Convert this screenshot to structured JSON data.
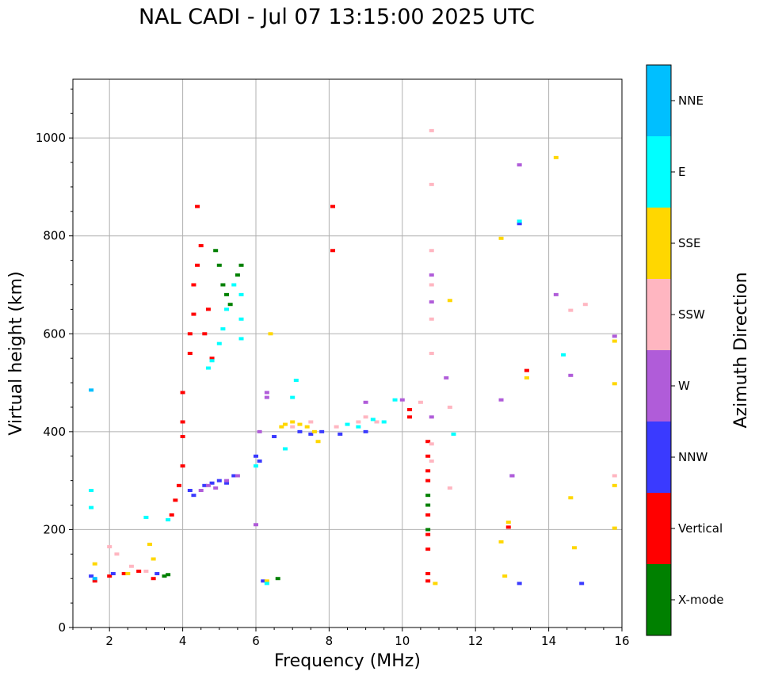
{
  "chart_data": {
    "type": "scatter",
    "title": "NAL CADI - Jul 07 13:15:00 2025 UTC",
    "xlabel": "Frequency (MHz)",
    "ylabel": "Virtual height (km)",
    "xlim": [
      1,
      16
    ],
    "ylim": [
      0,
      1120
    ],
    "xticks": [
      "2",
      "4",
      "6",
      "8",
      "10",
      "12",
      "14",
      "16"
    ],
    "yticks": [
      "0",
      "200",
      "400",
      "600",
      "800",
      "1000"
    ],
    "grid": true,
    "colorbar": {
      "label": "Azimuth Direction",
      "categories": [
        "X-mode",
        "Vertical",
        "NNW",
        "W",
        "SSW",
        "SSE",
        "E",
        "NNE"
      ],
      "colors": [
        "#008000",
        "#ff0000",
        "#3a3aff",
        "#b05cd9",
        "#ffb6c1",
        "#ffd700",
        "#00ffff",
        "#00bfff"
      ]
    },
    "series": [
      {
        "name": "X-mode",
        "points": [
          [
            3.5,
            105
          ],
          [
            3.6,
            108
          ],
          [
            4.9,
            770
          ],
          [
            5.0,
            740
          ],
          [
            5.1,
            700
          ],
          [
            5.2,
            680
          ],
          [
            5.3,
            660
          ],
          [
            5.5,
            720
          ],
          [
            5.6,
            740
          ],
          [
            10.7,
            270
          ],
          [
            10.7,
            250
          ],
          [
            10.7,
            200
          ],
          [
            6.6,
            100
          ]
        ]
      },
      {
        "name": "Vertical",
        "points": [
          [
            1.6,
            95
          ],
          [
            2.0,
            105
          ],
          [
            2.4,
            110
          ],
          [
            2.8,
            115
          ],
          [
            3.2,
            100
          ],
          [
            3.7,
            230
          ],
          [
            3.8,
            260
          ],
          [
            3.9,
            290
          ],
          [
            4.0,
            330
          ],
          [
            4.0,
            390
          ],
          [
            4.0,
            420
          ],
          [
            4.0,
            480
          ],
          [
            4.2,
            560
          ],
          [
            4.2,
            600
          ],
          [
            4.3,
            640
          ],
          [
            4.3,
            700
          ],
          [
            4.4,
            740
          ],
          [
            4.5,
            780
          ],
          [
            4.6,
            600
          ],
          [
            4.7,
            650
          ],
          [
            4.8,
            550
          ],
          [
            4.4,
            860
          ],
          [
            8.1,
            860
          ],
          [
            8.1,
            770
          ],
          [
            10.7,
            380
          ],
          [
            10.7,
            350
          ],
          [
            10.7,
            320
          ],
          [
            10.7,
            300
          ],
          [
            10.7,
            230
          ],
          [
            10.7,
            190
          ],
          [
            10.7,
            160
          ],
          [
            10.7,
            110
          ],
          [
            10.7,
            95
          ],
          [
            10.2,
            430
          ],
          [
            10.2,
            445
          ],
          [
            13.4,
            525
          ],
          [
            12.9,
            205
          ]
        ]
      },
      {
        "name": "NNW",
        "points": [
          [
            1.5,
            105
          ],
          [
            2.1,
            110
          ],
          [
            3.3,
            110
          ],
          [
            4.2,
            280
          ],
          [
            4.3,
            270
          ],
          [
            4.6,
            290
          ],
          [
            4.8,
            295
          ],
          [
            5.0,
            300
          ],
          [
            5.2,
            295
          ],
          [
            5.4,
            310
          ],
          [
            6.0,
            350
          ],
          [
            6.1,
            340
          ],
          [
            6.5,
            390
          ],
          [
            7.2,
            400
          ],
          [
            7.5,
            395
          ],
          [
            7.8,
            400
          ],
          [
            8.3,
            395
          ],
          [
            9.0,
            400
          ],
          [
            6.2,
            95
          ],
          [
            13.2,
            825
          ],
          [
            13.0,
            310
          ],
          [
            13.2,
            90
          ],
          [
            14.9,
            90
          ]
        ]
      },
      {
        "name": "W",
        "points": [
          [
            4.5,
            280
          ],
          [
            4.7,
            290
          ],
          [
            4.9,
            285
          ],
          [
            5.2,
            300
          ],
          [
            5.5,
            310
          ],
          [
            6.1,
            400
          ],
          [
            6.3,
            480
          ],
          [
            6.3,
            470
          ],
          [
            6.0,
            210
          ],
          [
            9.0,
            460
          ],
          [
            10.0,
            465
          ],
          [
            10.8,
            430
          ],
          [
            10.8,
            665
          ],
          [
            10.8,
            720
          ],
          [
            12.7,
            465
          ],
          [
            13.0,
            310
          ],
          [
            13.2,
            945
          ],
          [
            14.2,
            680
          ],
          [
            14.6,
            515
          ],
          [
            15.8,
            595
          ],
          [
            11.2,
            510
          ]
        ]
      },
      {
        "name": "SSW",
        "points": [
          [
            2.0,
            165
          ],
          [
            2.2,
            150
          ],
          [
            2.6,
            125
          ],
          [
            3.0,
            115
          ],
          [
            7.0,
            410
          ],
          [
            7.5,
            420
          ],
          [
            8.2,
            410
          ],
          [
            8.8,
            420
          ],
          [
            9.0,
            430
          ],
          [
            9.3,
            420
          ],
          [
            10.8,
            1015
          ],
          [
            10.8,
            905
          ],
          [
            10.8,
            770
          ],
          [
            10.8,
            700
          ],
          [
            10.8,
            630
          ],
          [
            10.8,
            560
          ],
          [
            10.8,
            375
          ],
          [
            10.8,
            340
          ],
          [
            10.5,
            460
          ],
          [
            11.3,
            450
          ],
          [
            11.3,
            285
          ],
          [
            14.6,
            648
          ],
          [
            15.0,
            660
          ],
          [
            15.8,
            310
          ]
        ]
      },
      {
        "name": "SSE",
        "points": [
          [
            1.6,
            130
          ],
          [
            2.5,
            110
          ],
          [
            3.1,
            170
          ],
          [
            3.2,
            140
          ],
          [
            6.3,
            95
          ],
          [
            6.4,
            600
          ],
          [
            6.7,
            410
          ],
          [
            6.8,
            415
          ],
          [
            7.0,
            420
          ],
          [
            7.2,
            415
          ],
          [
            7.4,
            410
          ],
          [
            7.6,
            400
          ],
          [
            7.7,
            380
          ],
          [
            10.9,
            90
          ],
          [
            11.3,
            668
          ],
          [
            12.7,
            795
          ],
          [
            12.8,
            105
          ],
          [
            12.7,
            175
          ],
          [
            12.9,
            215
          ],
          [
            13.4,
            510
          ],
          [
            14.2,
            960
          ],
          [
            14.6,
            265
          ],
          [
            14.7,
            163
          ],
          [
            15.8,
            585
          ],
          [
            15.8,
            498
          ],
          [
            15.8,
            290
          ],
          [
            15.8,
            203
          ]
        ]
      },
      {
        "name": "E",
        "points": [
          [
            1.5,
            280
          ],
          [
            1.5,
            245
          ],
          [
            3.0,
            225
          ],
          [
            3.6,
            220
          ],
          [
            4.7,
            530
          ],
          [
            4.8,
            545
          ],
          [
            5.0,
            580
          ],
          [
            5.1,
            610
          ],
          [
            5.2,
            650
          ],
          [
            5.4,
            700
          ],
          [
            5.6,
            680
          ],
          [
            5.6,
            630
          ],
          [
            5.6,
            590
          ],
          [
            6.0,
            330
          ],
          [
            6.3,
            90
          ],
          [
            6.8,
            365
          ],
          [
            7.0,
            470
          ],
          [
            7.1,
            505
          ],
          [
            8.5,
            415
          ],
          [
            8.8,
            410
          ],
          [
            9.2,
            425
          ],
          [
            9.5,
            420
          ],
          [
            9.8,
            465
          ],
          [
            11.4,
            395
          ],
          [
            13.2,
            830
          ],
          [
            14.4,
            557
          ]
        ]
      },
      {
        "name": "NNE",
        "points": [
          [
            1.5,
            485
          ],
          [
            1.6,
            100
          ]
        ]
      }
    ]
  }
}
